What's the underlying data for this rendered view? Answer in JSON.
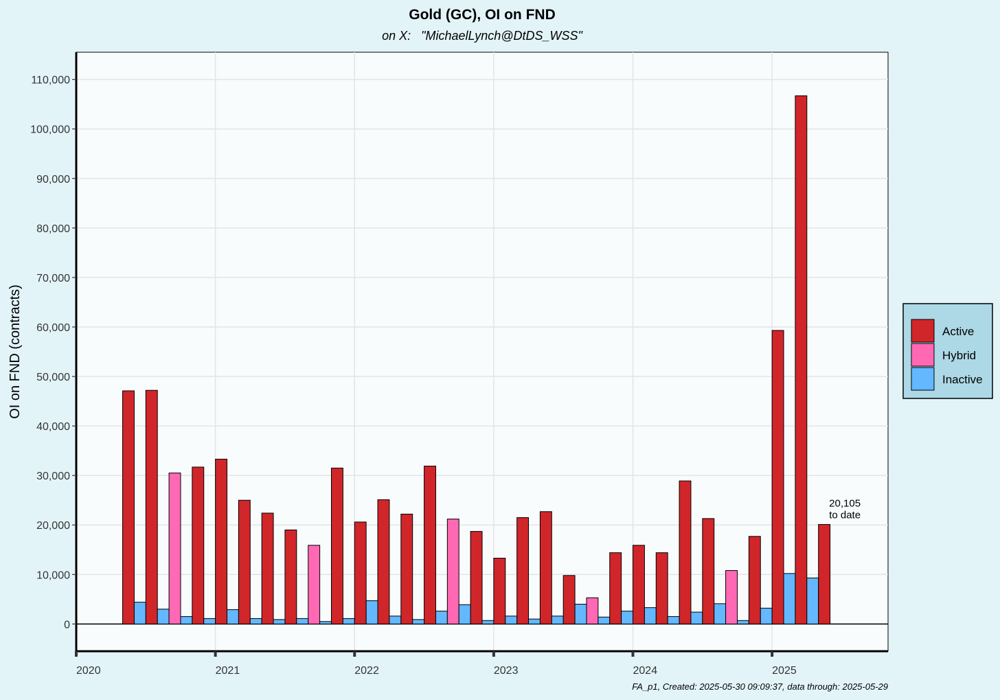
{
  "chart_data": {
    "type": "bar",
    "title": "Gold (GC), OI on FND",
    "subtitle": "on X:   \"MichaelLynch@DtDS_WSS\"",
    "ylabel": "OI on FND (contracts)",
    "xlabel": "",
    "x_ticks": [
      "2020",
      "2021",
      "2022",
      "2023",
      "2024",
      "2025"
    ],
    "y_ticks": [
      "0",
      "10,000",
      "20,000",
      "30,000",
      "40,000",
      "50,000",
      "60,000",
      "70,000",
      "80,000",
      "90,000",
      "100,000",
      "110,000"
    ],
    "ylim": [
      -5500,
      115500
    ],
    "xlim": [
      "2020-01-01",
      "2025-11-01"
    ],
    "grid": true,
    "legend_position": "right",
    "series": [
      {
        "name": "Active",
        "color": "#d0262a"
      },
      {
        "name": "Hybrid",
        "color": "#ff69b4"
      },
      {
        "name": "Inactive",
        "color": "#63b8ff"
      }
    ],
    "months": [
      "2020-06",
      "2020-08",
      "2020-10",
      "2020-12",
      "2021-02",
      "2021-04",
      "2021-06",
      "2021-08",
      "2021-10",
      "2021-12",
      "2022-02",
      "2022-04",
      "2022-06",
      "2022-08",
      "2022-10",
      "2022-12",
      "2023-02",
      "2023-04",
      "2023-06",
      "2023-08",
      "2023-10",
      "2023-12",
      "2024-02",
      "2024-04",
      "2024-06",
      "2024-08",
      "2024-10",
      "2024-12",
      "2025-02",
      "2025-04",
      "2025-06"
    ],
    "contract_type": [
      "Active",
      "Active",
      "Hybrid",
      "Active",
      "Active",
      "Active",
      "Active",
      "Active",
      "Hybrid",
      "Active",
      "Active",
      "Active",
      "Active",
      "Active",
      "Hybrid",
      "Active",
      "Active",
      "Active",
      "Active",
      "Active",
      "Hybrid",
      "Active",
      "Active",
      "Active",
      "Active",
      "Active",
      "Hybrid",
      "Active",
      "Active",
      "Active",
      "Active"
    ],
    "primary_oi": [
      47100,
      47200,
      30500,
      31700,
      33300,
      25000,
      22400,
      19000,
      15900,
      31500,
      20600,
      25100,
      22200,
      31900,
      21200,
      18700,
      13300,
      21500,
      22700,
      9800,
      5300,
      14400,
      15900,
      14400,
      28900,
      21300,
      10800,
      17700,
      59300,
      106700,
      20105
    ],
    "inactive_oi": [
      4400,
      3000,
      1500,
      1100,
      2900,
      1100,
      900,
      1100,
      500,
      1100,
      4700,
      1600,
      900,
      2600,
      3900,
      700,
      1600,
      1000,
      1600,
      4000,
      1400,
      2600,
      3300,
      1500,
      2400,
      4100,
      700,
      3200,
      10200,
      9300,
      0
    ],
    "annotation": {
      "value": "20,105",
      "text": "to date",
      "month": "2025-06"
    },
    "caption": "FA_p1, Created: 2025-05-30 09:09:37, data through: 2025-05-29"
  }
}
